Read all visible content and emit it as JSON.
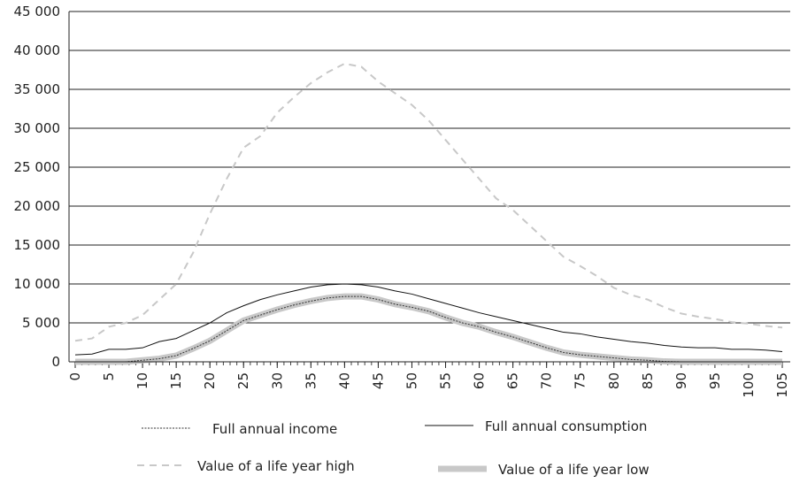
{
  "chart_data": {
    "type": "line",
    "x": [
      0,
      2.5,
      5,
      7.5,
      10,
      12.5,
      15,
      17.5,
      20,
      22.5,
      25,
      27.5,
      30,
      32.5,
      35,
      37.5,
      40,
      42.5,
      45,
      47.5,
      50,
      52.5,
      55,
      57.5,
      60,
      62.5,
      65,
      67.5,
      70,
      72.5,
      75,
      77.5,
      80,
      82.5,
      85,
      87.5,
      90,
      92.5,
      95,
      97.5,
      100,
      102.5,
      105
    ],
    "xlim": [
      0,
      105
    ],
    "xticks": [
      0,
      5,
      10,
      15,
      20,
      25,
      30,
      35,
      40,
      45,
      50,
      55,
      60,
      65,
      70,
      75,
      80,
      85,
      90,
      95,
      100,
      105
    ],
    "ylim": [
      0,
      45000
    ],
    "yticks": [
      {
        "value": 0,
        "label": "0"
      },
      {
        "value": 5000,
        "label": "5 000"
      },
      {
        "value": 10000,
        "label": "10 000"
      },
      {
        "value": 15000,
        "label": "15 000"
      },
      {
        "value": 20000,
        "label": "20 000"
      },
      {
        "value": 25000,
        "label": "25 000"
      },
      {
        "value": 30000,
        "label": "30 000"
      },
      {
        "value": 35000,
        "label": "35 000"
      },
      {
        "value": 40000,
        "label": "40 000"
      },
      {
        "value": 45000,
        "label": "45 000"
      }
    ],
    "grid": true,
    "series": [
      {
        "name": "Value of a life year low",
        "color": "#c8c8c8",
        "style": "thick",
        "values": [
          0,
          0,
          0,
          0,
          200,
          400,
          800,
          1700,
          2700,
          4000,
          5300,
          6000,
          6700,
          7300,
          7800,
          8200,
          8400,
          8400,
          8000,
          7400,
          7000,
          6500,
          5700,
          5000,
          4500,
          3800,
          3200,
          2500,
          1800,
          1200,
          900,
          700,
          500,
          300,
          200,
          50,
          0,
          0,
          0,
          0,
          0,
          0,
          0
        ]
      },
      {
        "name": "Full annual income",
        "color": "#333333",
        "style": "dotted",
        "values": [
          0,
          0,
          0,
          0,
          200,
          400,
          800,
          1700,
          2700,
          4000,
          5300,
          6000,
          6700,
          7300,
          7800,
          8200,
          8400,
          8400,
          8000,
          7400,
          7000,
          6500,
          5700,
          5000,
          4500,
          3800,
          3200,
          2500,
          1800,
          1200,
          900,
          700,
          500,
          300,
          200,
          50,
          0,
          0,
          0,
          0,
          0,
          0,
          0
        ]
      },
      {
        "name": "Full annual consumption",
        "color": "#111111",
        "style": "solid",
        "values": [
          900,
          1000,
          1600,
          1600,
          1800,
          2600,
          3000,
          4000,
          5000,
          6300,
          7200,
          8000,
          8600,
          9100,
          9600,
          9900,
          10000,
          9900,
          9600,
          9100,
          8700,
          8100,
          7500,
          6900,
          6300,
          5800,
          5300,
          4800,
          4300,
          3800,
          3600,
          3200,
          2900,
          2600,
          2400,
          2100,
          1900,
          1800,
          1800,
          1600,
          1600,
          1500,
          1300
        ]
      },
      {
        "name": "Value of a life year high",
        "color": "#c8c8c8",
        "style": "dashed",
        "values": [
          2700,
          3000,
          4500,
          5000,
          6000,
          8000,
          10000,
          14000,
          19000,
          23500,
          27500,
          29000,
          32000,
          34000,
          35800,
          37200,
          38300,
          37900,
          36000,
          34500,
          33000,
          31000,
          28500,
          26000,
          23500,
          21000,
          19500,
          17500,
          15500,
          13500,
          12300,
          11000,
          9500,
          8600,
          8000,
          7000,
          6200,
          5800,
          5500,
          5100,
          4900,
          4600,
          4400
        ]
      }
    ]
  }
}
